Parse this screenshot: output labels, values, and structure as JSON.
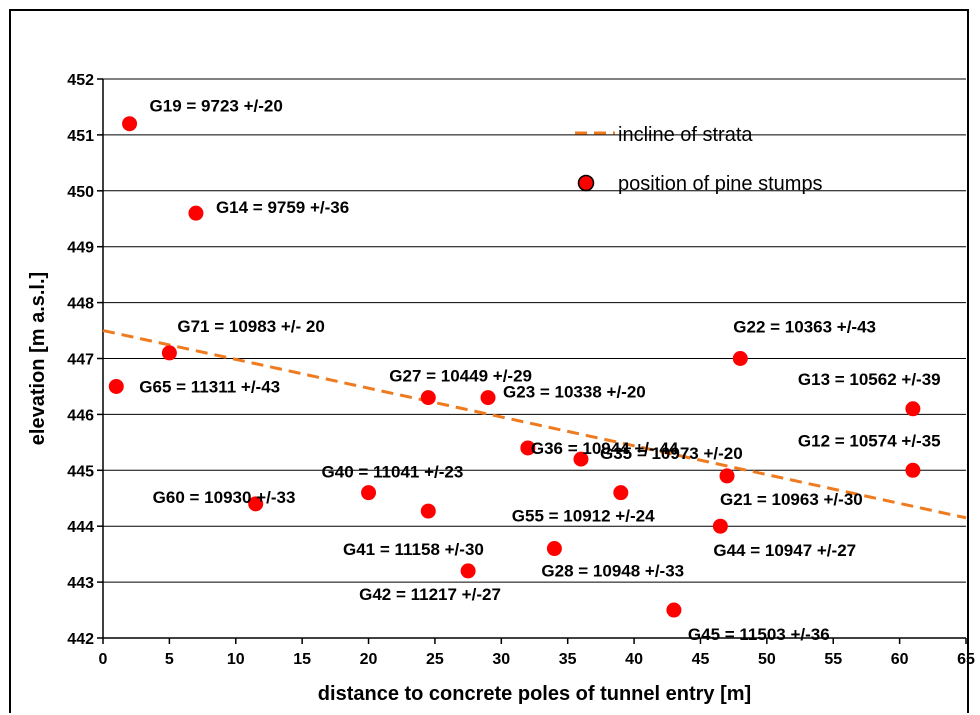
{
  "chart_data": {
    "type": "scatter",
    "xlabel": "distance to concrete poles of tunnel entry [m]",
    "ylabel": "elevation [m a.s.l.]",
    "xlim": [
      0,
      65
    ],
    "ylim": [
      442,
      452
    ],
    "xticks": [
      "0",
      "5",
      "10",
      "15",
      "20",
      "25",
      "30",
      "35",
      "40",
      "45",
      "50",
      "55",
      "60",
      "65"
    ],
    "yticks": [
      "442",
      "443",
      "444",
      "445",
      "446",
      "447",
      "448",
      "449",
      "450",
      "451",
      "452"
    ],
    "grid": "horizontal",
    "legend_position": "top-right",
    "legend": [
      {
        "name": "incline of strata",
        "kind": "dashed-line",
        "color": "#f07a1e"
      },
      {
        "name": "position of pine stumps",
        "kind": "marker",
        "color": "#ff0000"
      }
    ],
    "trend_line": {
      "name": "incline of strata",
      "x": [
        0,
        65
      ],
      "y": [
        447.5,
        444.15
      ],
      "color": "#f07a1e"
    },
    "series": [
      {
        "name": "position of pine stumps",
        "color": "#ff0000",
        "points": [
          {
            "x": 2,
            "y": 451.2,
            "label": "G19 = 9723 +/-20"
          },
          {
            "x": 7,
            "y": 449.6,
            "label": "G14 = 9759 +/-36"
          },
          {
            "x": 5,
            "y": 447.1,
            "label": "G71 = 10983 +/- 20"
          },
          {
            "x": 1,
            "y": 446.5,
            "label": "G65 = 11311 +/-43"
          },
          {
            "x": 11.5,
            "y": 444.4,
            "label": "G60 = 10930 +/-33"
          },
          {
            "x": 20,
            "y": 444.6,
            "label": "G40 = 11041 +/-23"
          },
          {
            "x": 24.5,
            "y": 444.27,
            "label": ""
          },
          {
            "x": 24.5,
            "y": 446.3,
            "label": "G27 = 10449 +/-29"
          },
          {
            "x": 29,
            "y": 446.3,
            "label": "G23 = 10338 +/-20"
          },
          {
            "x": 27.5,
            "y": 443.2,
            "label": "G42 = 11217 +/-27"
          },
          {
            "x": 32,
            "y": 445.4,
            "label": "G36 = 10944 +/- 44"
          },
          {
            "x": 34,
            "y": 443.6,
            "label": "G28 = 10948 +/-33"
          },
          {
            "x": 36,
            "y": 445.2,
            "label": "G35 = 10973 +/-20"
          },
          {
            "x": 39,
            "y": 444.6,
            "label": "G55 = 10912 +/-24"
          },
          {
            "x": 43,
            "y": 442.5,
            "label": "G45 = 11503 +/-36"
          },
          {
            "x": 46.5,
            "y": 444.0,
            "label": "G44 = 10947 +/-27"
          },
          {
            "x": 47,
            "y": 444.9,
            "label": "G21 = 10963 +/-30"
          },
          {
            "x": 48,
            "y": 447.0,
            "label": "G22 = 10363 +/-43"
          },
          {
            "x": 61,
            "y": 446.1,
            "label": "G13 = 10562 +/-39"
          },
          {
            "x": 61,
            "y": 445.0,
            "label": "G12 = 10574 +/-35"
          }
        ],
        "unattributed_label": "G41 = 11158 +/-30"
      }
    ]
  }
}
